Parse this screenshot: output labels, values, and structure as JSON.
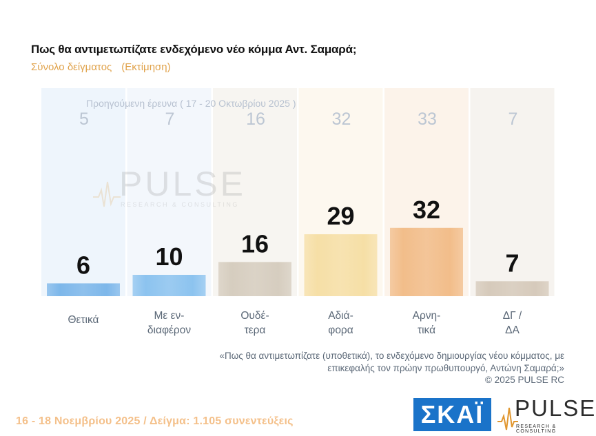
{
  "header": {
    "title": "Πως θα αντιμετωπίζατε ενδεχόμενο νέο κόμμα Αντ. Σαμαρά;",
    "subtitle_left": "Σύνολο δείγματος",
    "subtitle_right": "(Εκτίμηση)"
  },
  "chart_data": {
    "type": "bar",
    "categories": [
      [
        "Θετικά"
      ],
      [
        "Με εν-",
        "διαφέρον"
      ],
      [
        "Ουδέ-",
        "τερα"
      ],
      [
        "Αδιά-",
        "φορα"
      ],
      [
        "Αρνη-",
        "τικά"
      ],
      [
        "ΔΓ /",
        "ΔΑ"
      ]
    ],
    "series": [
      {
        "values": [
          6,
          10,
          16,
          29,
          32,
          7
        ]
      },
      {
        "name": "Προηγούμενη έρευνα ( 17 - 20 Οκτωβρίου 2025 )",
        "values": [
          5,
          7,
          16,
          32,
          33,
          7
        ]
      }
    ],
    "bar_colors": [
      "#7db7ea",
      "#8cc3ef",
      "#d6cdbf",
      "#f6dfa6",
      "#f2bd8a",
      "#d6cabb"
    ],
    "bg_colors": [
      "#eef5fc",
      "#f3f7fc",
      "#f7f5f1",
      "#fdf8ef",
      "#fcf3ea",
      "#f6f3ef"
    ],
    "ylim": [
      0,
      100
    ]
  },
  "note": {
    "quote": "«Πως θα αντιμετωπίζατε (υποθετικά), το ενδεχόμενο δημιουργίας νέου κόμματος, με επικεφαλής τον πρώην πρωθυπουργό, Αντώνη Σαμαρά;»",
    "copyright": "©  2025  PULSE RC"
  },
  "footer": {
    "date_sample": "16 - 18 Νοεμβρίου 2025  /  Δείγμα:  1.105 συνεντεύξεις"
  },
  "logos": {
    "skai": "ΣΚΑΪ",
    "pulse_word": "PULSE",
    "pulse_tag": "RESEARCH & CONSULTING",
    "watermark_word": "PULSE",
    "watermark_tag": "RESEARCH & CONSULTING"
  }
}
